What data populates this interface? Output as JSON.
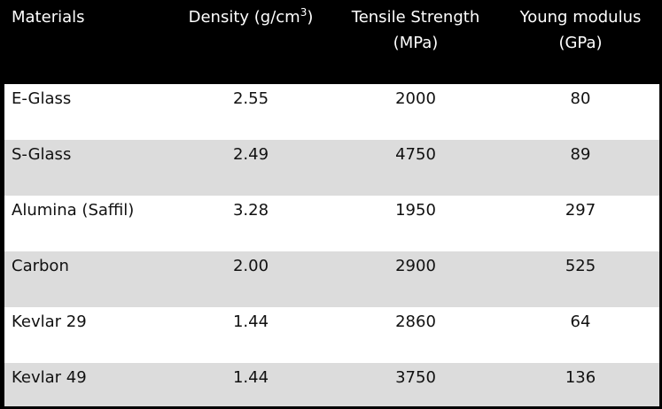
{
  "table": {
    "headers": {
      "materials": "Materials",
      "density_prefix": "Density (g/cm",
      "density_exp": "3",
      "density_suffix": ")",
      "tensile_line1": "Tensile Strength",
      "tensile_line2": "(MPa)",
      "young_line1": "Young modulus",
      "young_line2": "(GPa)"
    },
    "rows": [
      {
        "material": "E-Glass",
        "density": "2.55",
        "tensile": "2000",
        "young": "80"
      },
      {
        "material": "S-Glass",
        "density": "2.49",
        "tensile": "4750",
        "young": "89"
      },
      {
        "material": "Alumina (Saffil)",
        "density": "3.28",
        "tensile": "1950",
        "young": "297"
      },
      {
        "material": "Carbon",
        "density": "2.00",
        "tensile": "2900",
        "young": "525"
      },
      {
        "material": "Kevlar 29",
        "density": "1.44",
        "tensile": "2860",
        "young": "64"
      },
      {
        "material": "Kevlar 49",
        "density": "1.44",
        "tensile": "3750",
        "young": "136"
      }
    ]
  },
  "colors": {
    "header_bg": "#000000",
    "header_text": "#ffffff",
    "row_light": "#ffffff",
    "row_dark": "#dcdcdc"
  }
}
